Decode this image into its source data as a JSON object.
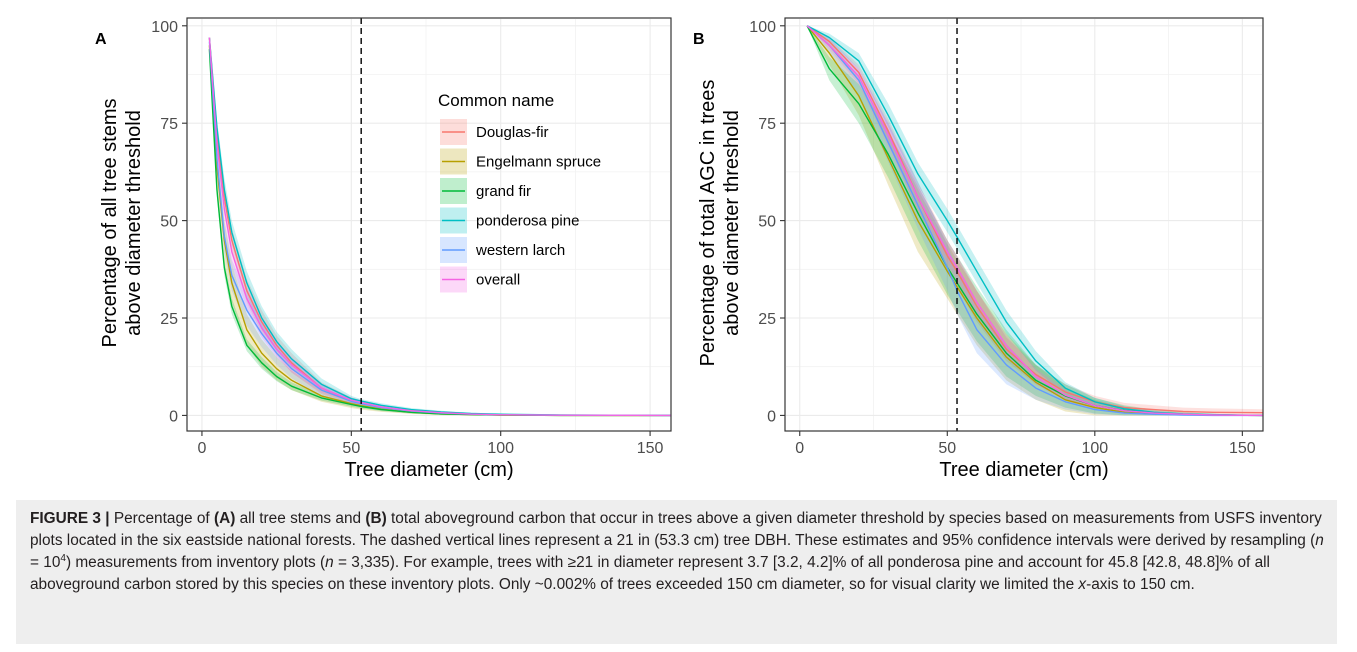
{
  "charts": [
    {
      "panel_letter": "A",
      "type": "line",
      "xlabel": "Tree diameter (cm)",
      "ylabel_line1": "Percentage of all tree stems",
      "ylabel_line2": "above diameter threshold",
      "xlim": [
        -5,
        157
      ],
      "ylim": [
        -4,
        102
      ],
      "xticks": [
        0,
        50,
        100,
        150
      ],
      "yticks": [
        0,
        25,
        50,
        75,
        100
      ],
      "xtick_labels": [
        "0",
        "50",
        "100",
        "150"
      ],
      "ytick_labels": [
        "0",
        "25",
        "50",
        "75",
        "100"
      ],
      "vline_x": 53.3,
      "grid": true,
      "legend": {
        "title": "Common name",
        "position": "inside-top-center",
        "entries": [
          "Douglas-fir",
          "Engelmann spruce",
          "grand fir",
          "ponderosa pine",
          "western larch",
          "overall"
        ]
      },
      "series": [
        {
          "name": "Douglas-fir",
          "color": "#f8766d",
          "x": [
            2.5,
            5,
            7.5,
            10,
            15,
            20,
            25,
            30,
            40,
            50,
            53.3,
            60,
            70,
            80,
            90,
            100,
            120,
            157
          ],
          "y": [
            97,
            72,
            56,
            45,
            32,
            24,
            18,
            13.5,
            7,
            3.8,
            3.2,
            2.1,
            1.1,
            0.6,
            0.3,
            0.1,
            0.03,
            0
          ],
          "lower": [
            97,
            70,
            53,
            42,
            29,
            21,
            15.5,
            11,
            5.5,
            3,
            2.5,
            1.5,
            0.7,
            0.3,
            0.1,
            0,
            0,
            0
          ],
          "upper": [
            97,
            74,
            59,
            48,
            35,
            27,
            20.5,
            16,
            8.5,
            4.6,
            3.9,
            2.7,
            1.5,
            0.9,
            0.5,
            0.2,
            0.06,
            0
          ]
        },
        {
          "name": "Engelmann spruce",
          "color": "#b79f00",
          "x": [
            2.5,
            5,
            7.5,
            10,
            15,
            20,
            25,
            30,
            40,
            50,
            53.3,
            60,
            70,
            80,
            90,
            100,
            120,
            157
          ],
          "y": [
            95,
            64,
            45,
            34,
            22,
            16,
            12,
            9,
            5,
            3,
            2.5,
            1.6,
            0.8,
            0.4,
            0.2,
            0.1,
            0,
            0
          ],
          "lower": [
            95,
            60,
            40,
            29,
            18,
            12.5,
            9,
            6.5,
            3.5,
            1.9,
            1.5,
            0.9,
            0.4,
            0.1,
            0,
            0,
            0,
            0
          ],
          "upper": [
            95,
            68,
            50,
            39,
            26,
            19.5,
            15,
            11.5,
            6.5,
            4.1,
            3.5,
            2.3,
            1.2,
            0.7,
            0.4,
            0.2,
            0,
            0
          ]
        },
        {
          "name": "grand fir",
          "color": "#00ba38",
          "x": [
            2.5,
            5,
            7.5,
            10,
            15,
            20,
            25,
            30,
            40,
            50,
            53.3,
            60,
            70,
            80,
            90,
            100,
            120,
            157
          ],
          "y": [
            94,
            58,
            38,
            28,
            18,
            13.5,
            10,
            7.5,
            4.5,
            2.8,
            2.3,
            1.5,
            0.8,
            0.4,
            0.2,
            0.1,
            0,
            0
          ],
          "lower": [
            94,
            56,
            36,
            26,
            16.5,
            12,
            8.8,
            6.5,
            3.8,
            2.2,
            1.8,
            1.1,
            0.5,
            0.2,
            0.1,
            0,
            0,
            0
          ],
          "upper": [
            94,
            60,
            40,
            30,
            19.5,
            15,
            11.2,
            8.5,
            5.2,
            3.4,
            2.8,
            1.9,
            1.1,
            0.6,
            0.3,
            0.2,
            0,
            0
          ]
        },
        {
          "name": "ponderosa pine",
          "color": "#00bfc4",
          "x": [
            2.5,
            5,
            7.5,
            10,
            15,
            20,
            25,
            30,
            40,
            50,
            53.3,
            60,
            70,
            80,
            90,
            100,
            120,
            157
          ],
          "y": [
            97,
            74,
            58,
            47,
            34,
            25,
            19,
            14.5,
            8,
            4.3,
            3.7,
            2.6,
            1.5,
            0.9,
            0.5,
            0.3,
            0.1,
            0
          ],
          "lower": [
            97,
            72,
            55,
            44,
            31,
            22,
            16.5,
            12,
            6.5,
            3.6,
            3.2,
            2.1,
            1.1,
            0.6,
            0.3,
            0.1,
            0,
            0
          ],
          "upper": [
            97,
            76,
            61,
            50,
            37,
            28,
            21.5,
            17,
            9.5,
            5,
            4.2,
            3.1,
            1.9,
            1.2,
            0.7,
            0.4,
            0.2,
            0
          ]
        },
        {
          "name": "western larch",
          "color": "#619cff",
          "x": [
            2.5,
            5,
            7.5,
            10,
            15,
            20,
            25,
            30,
            40,
            50,
            53.3,
            60,
            70,
            80,
            90,
            100,
            120,
            157
          ],
          "y": [
            96,
            66,
            46,
            36,
            27,
            21,
            16,
            12,
            6.5,
            3.6,
            3,
            2,
            1.1,
            0.6,
            0.3,
            0.15,
            0.05,
            0
          ],
          "lower": [
            96,
            62,
            42,
            32,
            23,
            17.5,
            13,
            9.5,
            5,
            2.6,
            2.1,
            1.3,
            0.6,
            0.3,
            0.1,
            0,
            0,
            0
          ],
          "upper": [
            96,
            70,
            50,
            40,
            31,
            24.5,
            19,
            14.5,
            8,
            4.6,
            3.9,
            2.7,
            1.6,
            0.9,
            0.5,
            0.3,
            0.1,
            0
          ]
        },
        {
          "name": "overall",
          "color": "#f564e3",
          "x": [
            2.5,
            5,
            7.5,
            10,
            15,
            20,
            25,
            30,
            40,
            50,
            53.3,
            60,
            70,
            80,
            90,
            100,
            120,
            157
          ],
          "y": [
            97,
            70,
            53,
            42,
            30,
            22.5,
            17,
            13,
            7,
            3.9,
            3.3,
            2.2,
            1.2,
            0.7,
            0.35,
            0.15,
            0.05,
            0
          ],
          "lower": [
            97,
            68,
            50,
            39,
            27,
            20,
            15,
            11,
            5.8,
            3.2,
            2.7,
            1.7,
            0.8,
            0.4,
            0.2,
            0.05,
            0,
            0
          ],
          "upper": [
            97,
            72,
            56,
            45,
            33,
            25,
            19,
            15,
            8.2,
            4.6,
            3.9,
            2.7,
            1.6,
            1,
            0.5,
            0.25,
            0.1,
            0
          ]
        }
      ]
    },
    {
      "panel_letter": "B",
      "type": "line",
      "xlabel": "Tree diameter (cm)",
      "ylabel_line1": "Percentage of total AGC in trees",
      "ylabel_line2": "above diameter threshold",
      "xlim": [
        -5,
        157
      ],
      "ylim": [
        -4,
        102
      ],
      "xticks": [
        0,
        50,
        100,
        150
      ],
      "yticks": [
        0,
        25,
        50,
        75,
        100
      ],
      "xtick_labels": [
        "0",
        "50",
        "100",
        "150"
      ],
      "ytick_labels": [
        "0",
        "25",
        "50",
        "75",
        "100"
      ],
      "vline_x": 53.3,
      "grid": true,
      "series": [
        {
          "name": "Douglas-fir",
          "color": "#f8766d",
          "x": [
            2.5,
            10,
            20,
            30,
            40,
            50,
            53.3,
            60,
            70,
            80,
            90,
            100,
            110,
            120,
            130,
            140,
            157
          ],
          "y": [
            100,
            96,
            88,
            73,
            56,
            41,
            37,
            28,
            17,
            10.5,
            6,
            3.5,
            2,
            1.5,
            1,
            0.8,
            0.7
          ],
          "lower": [
            100,
            95,
            86,
            70,
            52,
            37,
            33,
            24,
            14,
            8,
            4,
            2,
            1,
            0.5,
            0.2,
            0,
            0
          ],
          "upper": [
            100,
            97,
            90,
            76,
            60,
            45,
            41,
            32,
            20,
            13,
            8,
            5,
            3.2,
            2.6,
            2,
            1.8,
            1.6
          ]
        },
        {
          "name": "Engelmann spruce",
          "color": "#b79f00",
          "x": [
            2.5,
            10,
            20,
            30,
            40,
            50,
            53.3,
            60,
            70,
            80,
            90,
            100,
            110,
            120,
            130,
            140,
            157
          ],
          "y": [
            100,
            93,
            82,
            66,
            50,
            37,
            33,
            25,
            15,
            8.5,
            4,
            2,
            0.8,
            0.4,
            0.2,
            0.1,
            0
          ],
          "lower": [
            100,
            90,
            77,
            59,
            42,
            30,
            26,
            18,
            9,
            4,
            1,
            0,
            0,
            0,
            0,
            0,
            0
          ],
          "upper": [
            100,
            96,
            87,
            73,
            58,
            44,
            40,
            32,
            21,
            13,
            7,
            4,
            2,
            1,
            0.6,
            0.3,
            0
          ]
        },
        {
          "name": "grand fir",
          "color": "#00ba38",
          "x": [
            2.5,
            10,
            20,
            30,
            40,
            50,
            53.3,
            60,
            70,
            80,
            90,
            100,
            110,
            120,
            130,
            140,
            157
          ],
          "y": [
            100,
            89,
            80,
            67,
            52,
            38,
            34,
            26,
            16,
            9,
            5,
            2.5,
            1.3,
            0.7,
            0.3,
            0.1,
            0
          ],
          "lower": [
            100,
            86,
            75,
            61,
            45,
            31,
            27,
            19,
            10,
            5,
            2,
            0.5,
            0,
            0,
            0,
            0,
            0
          ],
          "upper": [
            100,
            92,
            85,
            73,
            59,
            45,
            41,
            33,
            22,
            13,
            8,
            4.5,
            2.6,
            1.5,
            0.8,
            0.4,
            0
          ]
        },
        {
          "name": "ponderosa pine",
          "color": "#00bfc4",
          "x": [
            2.5,
            10,
            20,
            30,
            40,
            50,
            53.3,
            60,
            70,
            80,
            90,
            100,
            110,
            120,
            130,
            140,
            157
          ],
          "y": [
            100,
            97,
            91,
            77,
            62,
            50,
            45.8,
            37,
            24,
            14,
            7,
            3.5,
            1.7,
            0.8,
            0.4,
            0.2,
            0
          ],
          "lower": [
            100,
            96,
            89,
            74,
            59,
            47,
            42.8,
            34,
            21,
            11.5,
            5.5,
            2.5,
            1,
            0.4,
            0.1,
            0,
            0
          ],
          "upper": [
            100,
            98,
            93,
            80,
            65,
            53,
            48.8,
            40,
            27,
            16.5,
            8.5,
            4.5,
            2.4,
            1.2,
            0.7,
            0.4,
            0
          ]
        },
        {
          "name": "western larch",
          "color": "#619cff",
          "x": [
            2.5,
            10,
            20,
            30,
            40,
            50,
            53.3,
            60,
            70,
            80,
            90,
            100,
            110,
            120,
            130,
            140,
            157
          ],
          "y": [
            100,
            95,
            86,
            70,
            54,
            38,
            32,
            22,
            13,
            7,
            3.5,
            1.5,
            0.6,
            0.3,
            0.1,
            0,
            0
          ],
          "lower": [
            100,
            93,
            82,
            65,
            48,
            32,
            26,
            16,
            8,
            4,
            1.5,
            0.3,
            0,
            0,
            0,
            0,
            0
          ],
          "upper": [
            100,
            97,
            89,
            75,
            60,
            44,
            38,
            28,
            18,
            10,
            5.5,
            2.8,
            1.3,
            0.7,
            0.3,
            0.1,
            0
          ]
        },
        {
          "name": "overall",
          "color": "#f564e3",
          "x": [
            2.5,
            10,
            20,
            30,
            40,
            50,
            53.3,
            60,
            70,
            80,
            90,
            100,
            110,
            120,
            130,
            140,
            157
          ],
          "y": [
            100,
            95,
            87,
            72,
            56,
            42,
            38,
            29,
            18,
            10,
            5.2,
            2.5,
            1.2,
            0.6,
            0.3,
            0.1,
            0
          ],
          "lower": [
            100,
            94,
            85,
            69,
            53,
            39,
            35,
            26,
            15.5,
            8,
            3.8,
            1.5,
            0.5,
            0.1,
            0,
            0,
            0
          ],
          "upper": [
            100,
            96,
            89,
            75,
            59,
            45,
            41,
            32,
            20.5,
            12,
            6.6,
            3.5,
            1.9,
            1.1,
            0.6,
            0.3,
            0.1
          ]
        }
      ]
    }
  ],
  "caption": {
    "label": "FIGURE 3 |",
    "text1": " Percentage of ",
    "bold_a": "(A)",
    "text2": " all tree stems and ",
    "bold_b": "(B)",
    "text3": " total aboveground carbon that occur in trees above a given diameter threshold by species based on measurements from USFS inventory plots located in the six eastside national forests. The dashed vertical lines represent a 21 in (53.3 cm) tree DBH. These estimates and 95% confidence intervals were derived by resampling (",
    "n1": "n",
    "text4": " = 10",
    "sup": "4",
    "text5": ") measurements from inventory plots (",
    "n2": "n",
    "text6": " = 3,335). For example, trees with ≥21 in diameter represent 3.7 [3.2, 4.2]% of all ponderosa pine and account for 45.8 [42.8, 48.8]% of all aboveground carbon stored by this species on these inventory plots. Only ~0.002% of trees exceeded 150 cm diameter, so for visual clarity we limited the ",
    "xital": "x",
    "text7": "-axis to 150 cm."
  }
}
